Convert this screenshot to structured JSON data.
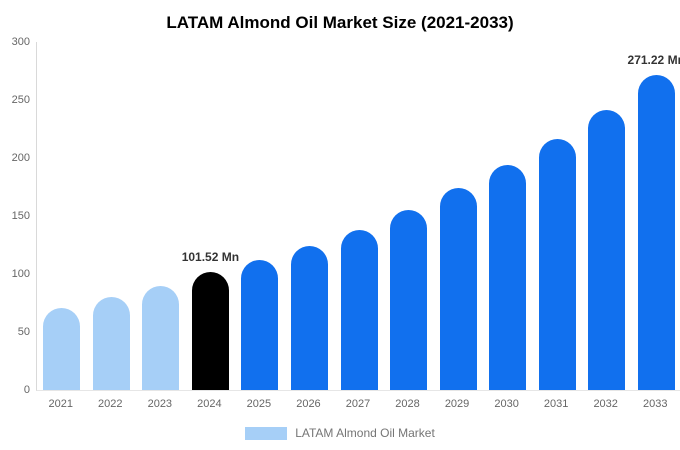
{
  "chart_data": {
    "type": "bar",
    "title": "LATAM Almond Oil Market Size (2021-2033)",
    "categories": [
      "2021",
      "2022",
      "2023",
      "2024",
      "2025",
      "2026",
      "2027",
      "2028",
      "2029",
      "2030",
      "2031",
      "2032",
      "2033"
    ],
    "values": [
      71,
      80,
      90,
      101.52,
      112,
      124,
      138,
      155,
      174,
      194,
      216,
      241,
      271.22
    ],
    "unit": "Mn",
    "xlabel": "",
    "ylabel": "",
    "ylim": [
      0,
      300
    ],
    "yticks": [
      0,
      50,
      100,
      150,
      200,
      250,
      300
    ],
    "grid": false,
    "legend_position": "bottom",
    "bar_colors": [
      "#A6CFF7",
      "#A6CFF7",
      "#A6CFF7",
      "#000000",
      "#1170EE",
      "#1170EE",
      "#1170EE",
      "#1170EE",
      "#1170EE",
      "#1170EE",
      "#1170EE",
      "#1170EE",
      "#1170EE"
    ],
    "annotations": [
      {
        "year": "2024",
        "text": "101.52 Mn"
      },
      {
        "year": "2033",
        "text": "271.22 Mn"
      }
    ],
    "legend": {
      "label": "LATAM Almond Oil Market",
      "swatch_color": "#A6CFF7"
    },
    "colors": {
      "series_blue": "#1170EE",
      "series_light_blue": "#A6CFF7",
      "highlight_black": "#000000",
      "axis_text": "#666666",
      "legend_text": "#757575",
      "value_label_text": "#333333",
      "y_axis_line": "#d9d9d9",
      "x_axis_line": "#e6e6e6"
    }
  }
}
